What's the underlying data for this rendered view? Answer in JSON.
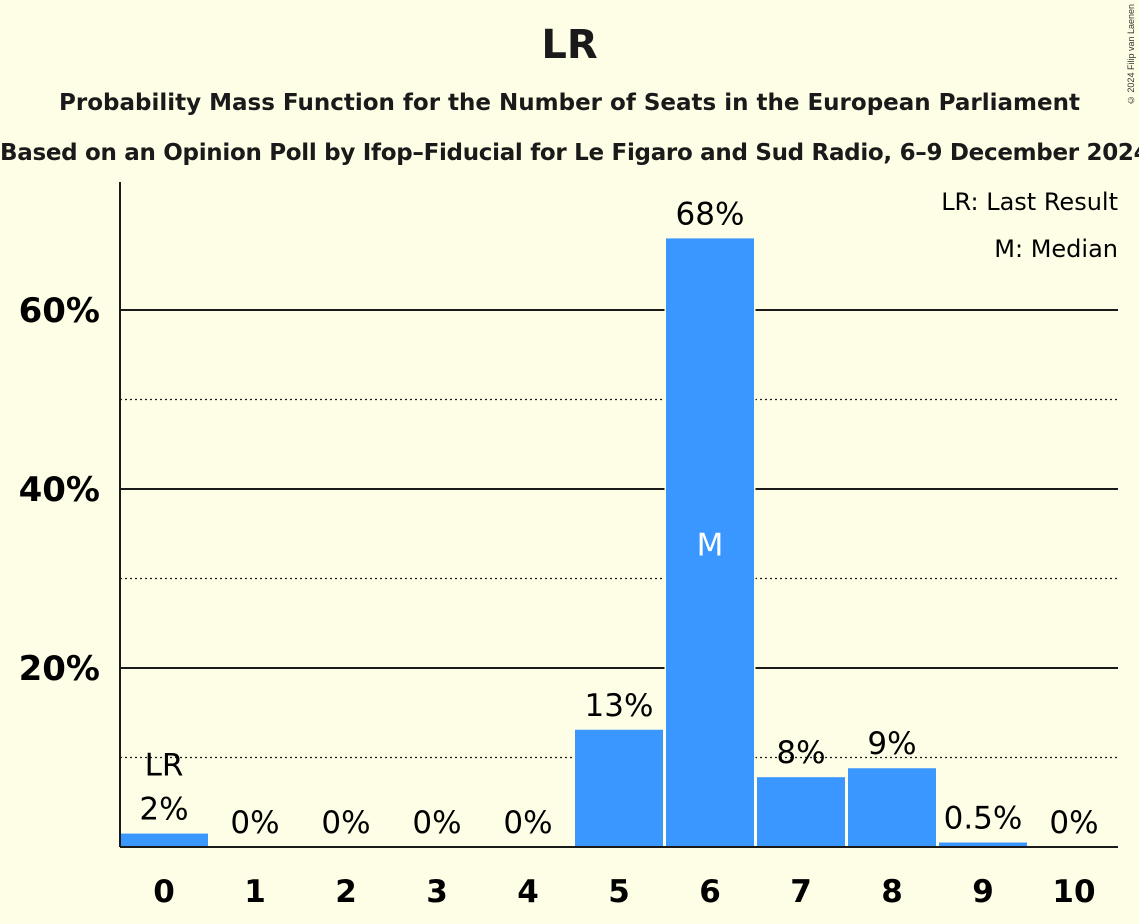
{
  "header": {
    "title": "LR",
    "subtitle": "Probability Mass Function for the Number of Seats in the European Parliament",
    "subtitle2": "Based on an Opinion Poll by Ifop–Fiducial for Le Figaro and Sud Radio, 6–9 December 2024",
    "copyright": "© 2024 Filip van Laenen"
  },
  "legend": {
    "last_result": "LR: Last Result",
    "median": "M: Median",
    "placement": "top-right"
  },
  "chart_data": {
    "type": "bar",
    "categories": [
      "0",
      "1",
      "2",
      "3",
      "4",
      "5",
      "6",
      "7",
      "8",
      "9",
      "10"
    ],
    "values": [
      1.5,
      0,
      0,
      0,
      0,
      13.1,
      68.0,
      7.8,
      8.8,
      0.5,
      0
    ],
    "labels": [
      "2%",
      "0%",
      "0%",
      "0%",
      "0%",
      "13%",
      "68%",
      "8%",
      "9%",
      "0.5%",
      "0%"
    ],
    "ylim": [
      0,
      74
    ],
    "yticks_major": [
      20,
      40,
      60
    ],
    "ytick_labels": [
      "20%",
      "40%",
      "60%"
    ],
    "yticks_minor": [
      10,
      30,
      50
    ],
    "last_result_index": 0,
    "last_result_marker": "LR",
    "median_index": 6,
    "median_marker": "M",
    "bar_color": "#3a97ff",
    "grid": true
  }
}
